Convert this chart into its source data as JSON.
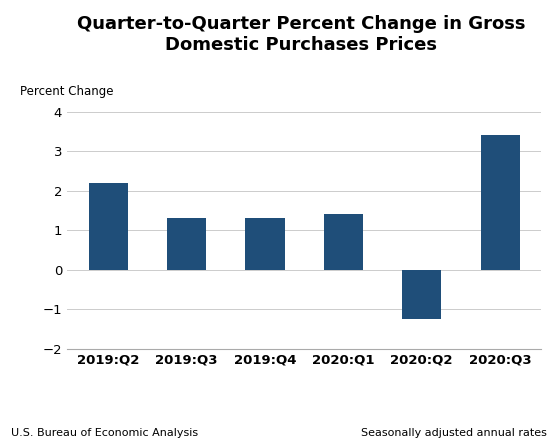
{
  "title": "Quarter-to-Quarter Percent Change in Gross\nDomestic Purchases Prices",
  "ylabel": "Percent Change",
  "categories": [
    "2019:Q2",
    "2019:Q3",
    "2019:Q4",
    "2020:Q1",
    "2020:Q2",
    "2020:Q3"
  ],
  "values": [
    2.2,
    1.3,
    1.3,
    1.4,
    -1.25,
    3.4
  ],
  "bar_color": "#1F4E79",
  "ylim": [
    -2,
    4
  ],
  "yticks": [
    -2,
    -1,
    0,
    1,
    2,
    3,
    4
  ],
  "footnote_left": "U.S. Bureau of Economic Analysis",
  "footnote_right": "Seasonally adjusted annual rates",
  "title_fontsize": 13,
  "ylabel_fontsize": 8.5,
  "xtick_fontsize": 9.5,
  "ytick_fontsize": 9.5,
  "footnote_fontsize": 8,
  "background_color": "#ffffff"
}
